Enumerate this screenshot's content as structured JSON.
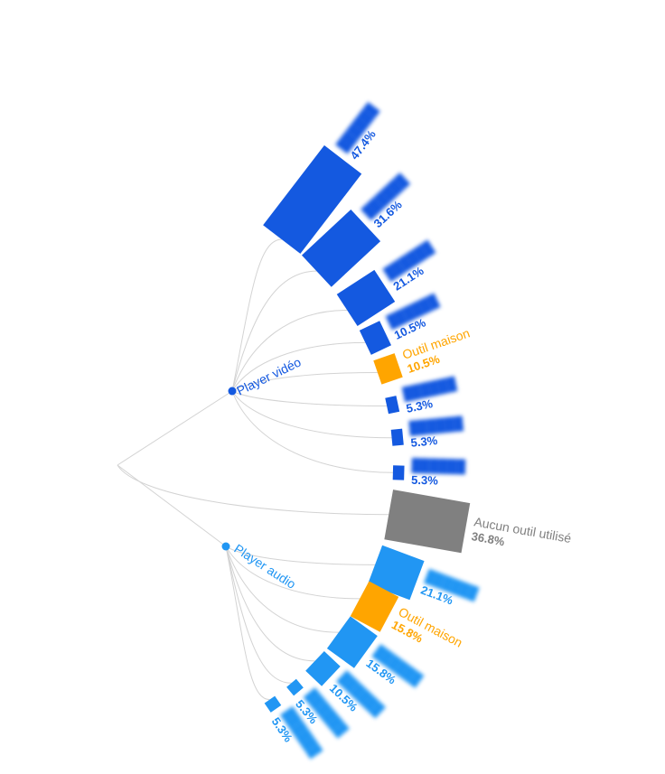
{
  "colors": {
    "video": "#1459e0",
    "audio": "#2196f3",
    "inhouse": "#ffa500",
    "none": "#808080",
    "link": "#d3d3d3"
  },
  "chart_data": {
    "type": "radial-tree-bar",
    "title": "",
    "groups": [
      {
        "key": "video",
        "name": "Player vidéo",
        "items": [
          {
            "name": "",
            "value": 47.4,
            "label": "47.4%",
            "kind": "tool",
            "redacted": true
          },
          {
            "name": "",
            "value": 31.6,
            "label": "31.6%",
            "kind": "tool",
            "redacted": true
          },
          {
            "name": "",
            "value": 21.1,
            "label": "21.1%",
            "kind": "tool",
            "redacted": true
          },
          {
            "name": "",
            "value": 10.5,
            "label": "10.5%",
            "kind": "tool",
            "redacted": true
          },
          {
            "name": "Outil maison",
            "value": 10.5,
            "label": "10.5%",
            "kind": "inhouse",
            "redacted": false
          },
          {
            "name": "",
            "value": 5.3,
            "label": "5.3%",
            "kind": "tool",
            "redacted": true
          },
          {
            "name": "",
            "value": 5.3,
            "label": "5.3%",
            "kind": "tool",
            "redacted": true
          },
          {
            "name": "",
            "value": 5.3,
            "label": "5.3%",
            "kind": "tool",
            "redacted": true
          }
        ]
      },
      {
        "key": "none",
        "name": "",
        "items": [
          {
            "name": "Aucun outil utilisé",
            "value": 36.8,
            "label": "36.8%",
            "kind": "none",
            "redacted": false
          }
        ]
      },
      {
        "key": "audio",
        "name": "Player audio",
        "items": [
          {
            "name": "",
            "value": 21.1,
            "label": "21.1%",
            "kind": "tool",
            "redacted": true
          },
          {
            "name": "Outil maison",
            "value": 15.8,
            "label": "15.8%",
            "kind": "inhouse",
            "redacted": false
          },
          {
            "name": "",
            "value": 15.8,
            "label": "15.8%",
            "kind": "tool",
            "redacted": true
          },
          {
            "name": "",
            "value": 10.5,
            "label": "10.5%",
            "kind": "tool",
            "redacted": true
          },
          {
            "name": "",
            "value": 5.3,
            "label": "5.3%",
            "kind": "tool",
            "redacted": true
          },
          {
            "name": "",
            "value": 5.3,
            "label": "5.3%",
            "kind": "tool",
            "redacted": true
          }
        ]
      }
    ]
  }
}
